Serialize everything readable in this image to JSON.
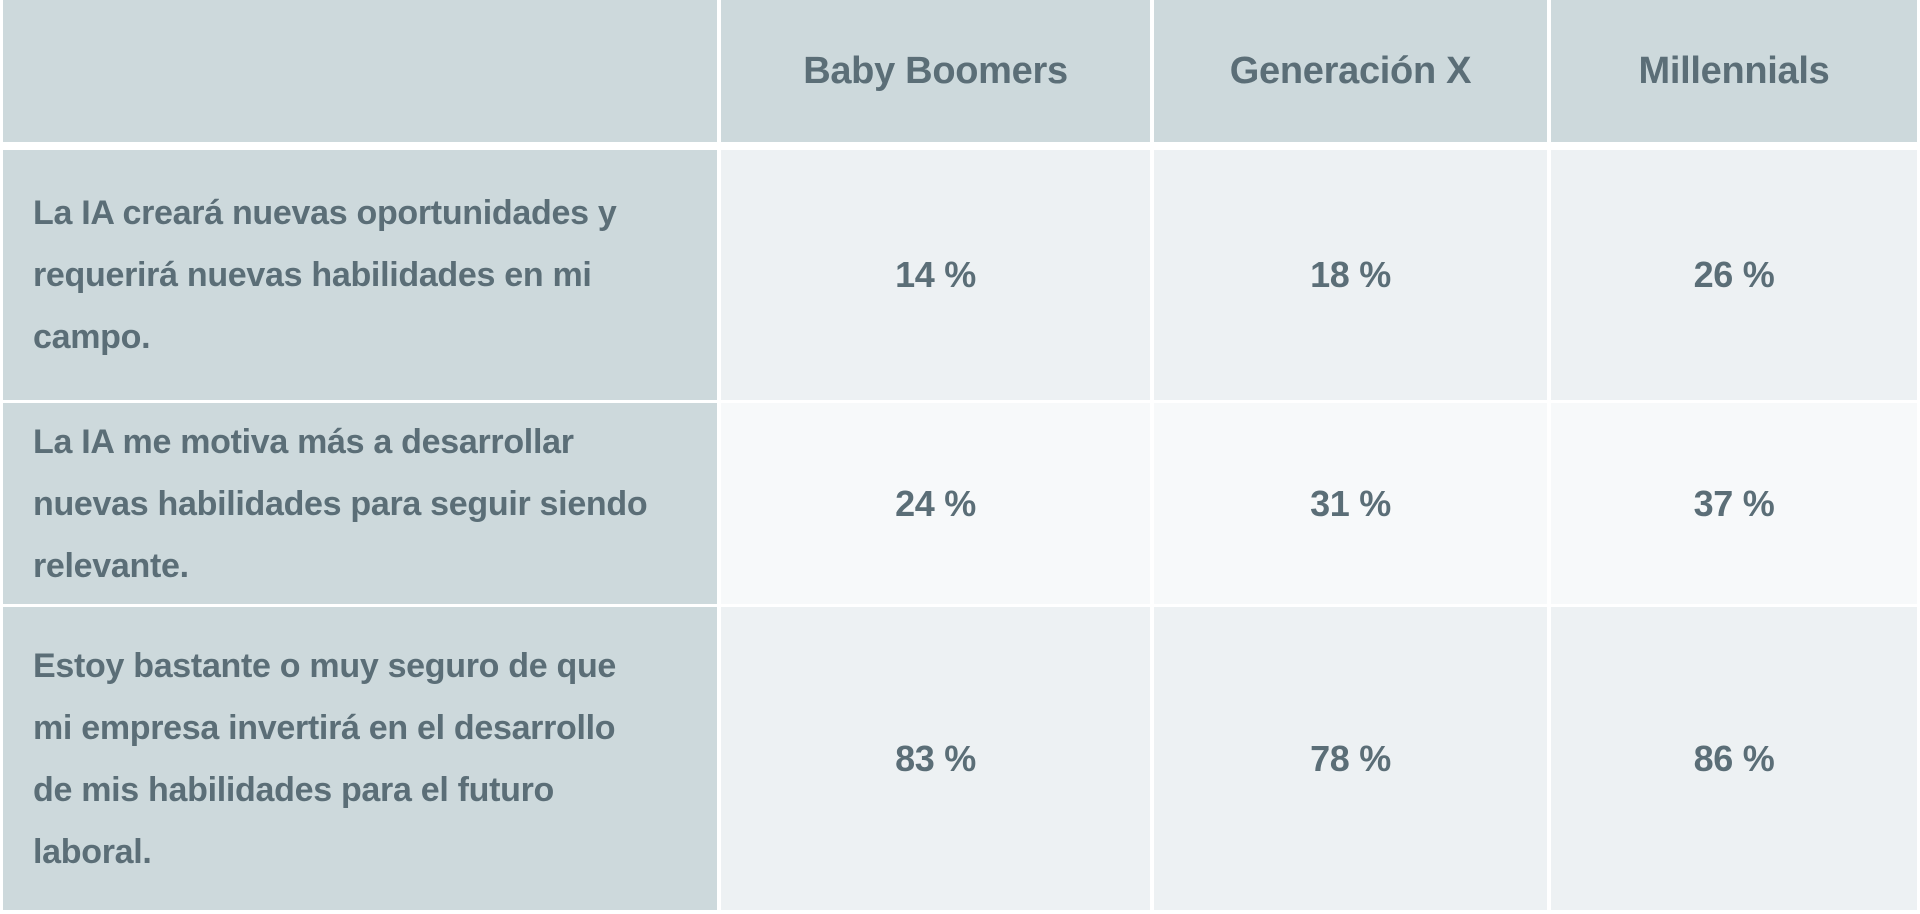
{
  "colors": {
    "page_background": "#ffffff",
    "header_and_label_cell_bg": "#cdd9dc",
    "data_cell_bg": "#edf1f3",
    "data_cell_alt_bg": "#f7f9fa",
    "text": "#5b6e77",
    "gutter": "#ffffff"
  },
  "table": {
    "columns": [
      "Baby Boomers",
      "Generación X",
      "Millennials"
    ],
    "rows": [
      {
        "statement": "La IA creará nuevas oportunidades y requerirá nuevas habilidades en mi campo.",
        "lines": [
          "La IA creará nuevas oportunidades y",
          "requerirá nuevas habilidades en mi",
          "campo."
        ],
        "values": [
          "14 %",
          "18 %",
          "26 %"
        ]
      },
      {
        "statement": "La IA me motiva más a desarrollar nuevas habilidades para seguir siendo relevante.",
        "lines": [
          "La IA me motiva más a desarrollar",
          "nuevas habilidades para seguir siendo",
          "relevante."
        ],
        "values": [
          "24 %",
          "31 %",
          "37 %"
        ]
      },
      {
        "statement": "Estoy bastante o muy seguro de que mi empresa invertirá en el desarrollo de mis habilidades para el futuro laboral.",
        "lines": [
          "Estoy bastante o muy seguro de que",
          "mi empresa invertirá en el desarrollo",
          "de mis habilidades para el futuro",
          "laboral."
        ],
        "values": [
          "83 %",
          "78 %",
          "86 %"
        ]
      }
    ]
  },
  "chart_data": {
    "type": "table",
    "categories": [
      "Baby Boomers",
      "Generación X",
      "Millennials"
    ],
    "series": [
      {
        "name": "La IA creará nuevas oportunidades y requerirá nuevas habilidades en mi campo.",
        "values": [
          14,
          18,
          26
        ]
      },
      {
        "name": "La IA me motiva más a desarrollar nuevas habilidades para seguir siendo relevante.",
        "values": [
          24,
          31,
          37
        ]
      },
      {
        "name": "Estoy bastante o muy seguro de que mi empresa invertirá en el desarrollo de mis habilidades para el futuro laboral.",
        "values": [
          83,
          78,
          86
        ]
      }
    ],
    "unit": "%",
    "title": "",
    "legend_position": "none",
    "grid": false
  }
}
